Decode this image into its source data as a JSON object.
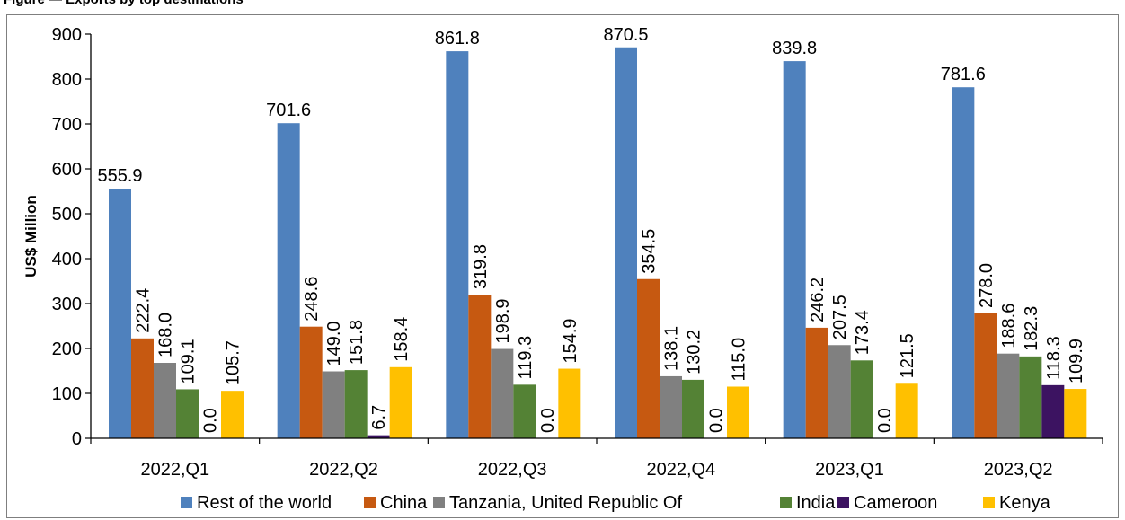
{
  "figure_title": "Figure — Exports by top destinations",
  "chart_data": {
    "type": "bar",
    "title": "",
    "xlabel": "",
    "ylabel": "US$ Million",
    "ylim": [
      0,
      900
    ],
    "yticks": [
      0,
      100,
      200,
      300,
      400,
      500,
      600,
      700,
      800,
      900
    ],
    "grid": false,
    "legend_position": "bottom",
    "categories": [
      "2022,Q1",
      "2022,Q2",
      "2022,Q3",
      "2022,Q4",
      "2023,Q1",
      "2023,Q2"
    ],
    "series": [
      {
        "name": "Rest of the world",
        "color": "#4f81bd",
        "values": [
          555.9,
          701.6,
          861.8,
          870.5,
          839.8,
          781.6
        ],
        "labels": [
          "555.9",
          "701.6",
          "861.8",
          "870.5",
          "839.8",
          "781.6"
        ]
      },
      {
        "name": "China",
        "color": "#c65911",
        "values": [
          222.4,
          248.6,
          319.8,
          354.5,
          246.2,
          278.0
        ],
        "labels": [
          "222.4",
          "248.6",
          "319.8",
          "354.5",
          "246.2",
          "278.0"
        ]
      },
      {
        "name": "Tanzania, United Republic Of",
        "color": "#808080",
        "values": [
          168.0,
          149.0,
          198.9,
          138.1,
          207.5,
          188.6
        ],
        "labels": [
          "168.0",
          "149.0",
          "198.9",
          "138.1",
          "207.5",
          "188.6"
        ]
      },
      {
        "name": "India",
        "color": "#548235",
        "values": [
          109.1,
          151.8,
          119.3,
          130.2,
          173.4,
          182.3
        ],
        "labels": [
          "109.1",
          "151.8",
          "119.3",
          "130.2",
          "173.4",
          "182.3"
        ]
      },
      {
        "name": "Cameroon",
        "color": "#3c1361",
        "values": [
          0.0,
          6.7,
          0.0,
          0.0,
          0.0,
          118.3
        ],
        "labels": [
          "0.0",
          "6.7",
          "0.0",
          "0.0",
          "0.0",
          "118.3"
        ]
      },
      {
        "name": "Kenya",
        "color": "#ffc000",
        "values": [
          105.7,
          158.4,
          154.9,
          115.0,
          121.5,
          109.9
        ],
        "labels": [
          "105.7",
          "158.4",
          "154.9",
          "115.0",
          "121.5",
          "109.9"
        ]
      }
    ]
  }
}
